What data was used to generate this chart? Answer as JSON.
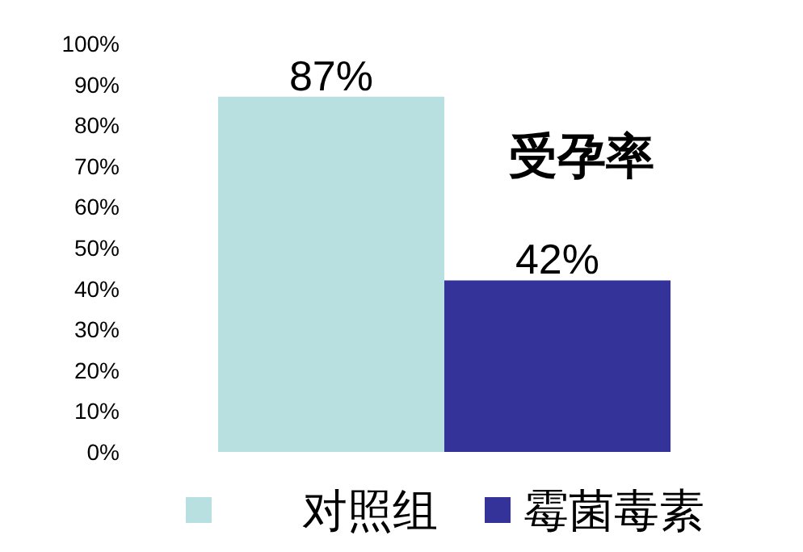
{
  "chart_data": {
    "type": "bar",
    "categories": [
      null
    ],
    "series": [
      {
        "name": "对照组",
        "color": "#b9e0e1",
        "values": [
          87
        ],
        "value_labels": [
          "87%"
        ]
      },
      {
        "name": "霉菌毒素",
        "color": "#333399",
        "values": [
          42
        ],
        "value_labels": [
          "42%"
        ]
      }
    ],
    "ylim": [
      0,
      100
    ],
    "yticks": [
      {
        "value": 0,
        "label": "0%"
      },
      {
        "value": 10,
        "label": "10%"
      },
      {
        "value": 20,
        "label": "20%"
      },
      {
        "value": 30,
        "label": "30%"
      },
      {
        "value": 40,
        "label": "40%"
      },
      {
        "value": 50,
        "label": "50%"
      },
      {
        "value": 60,
        "label": "60%"
      },
      {
        "value": 70,
        "label": "70%"
      },
      {
        "value": 80,
        "label": "80%"
      },
      {
        "value": 90,
        "label": "90%"
      },
      {
        "value": 100,
        "label": "100%"
      }
    ],
    "annotations": [
      "受孕率"
    ],
    "legend": "bottom",
    "grid": false
  }
}
